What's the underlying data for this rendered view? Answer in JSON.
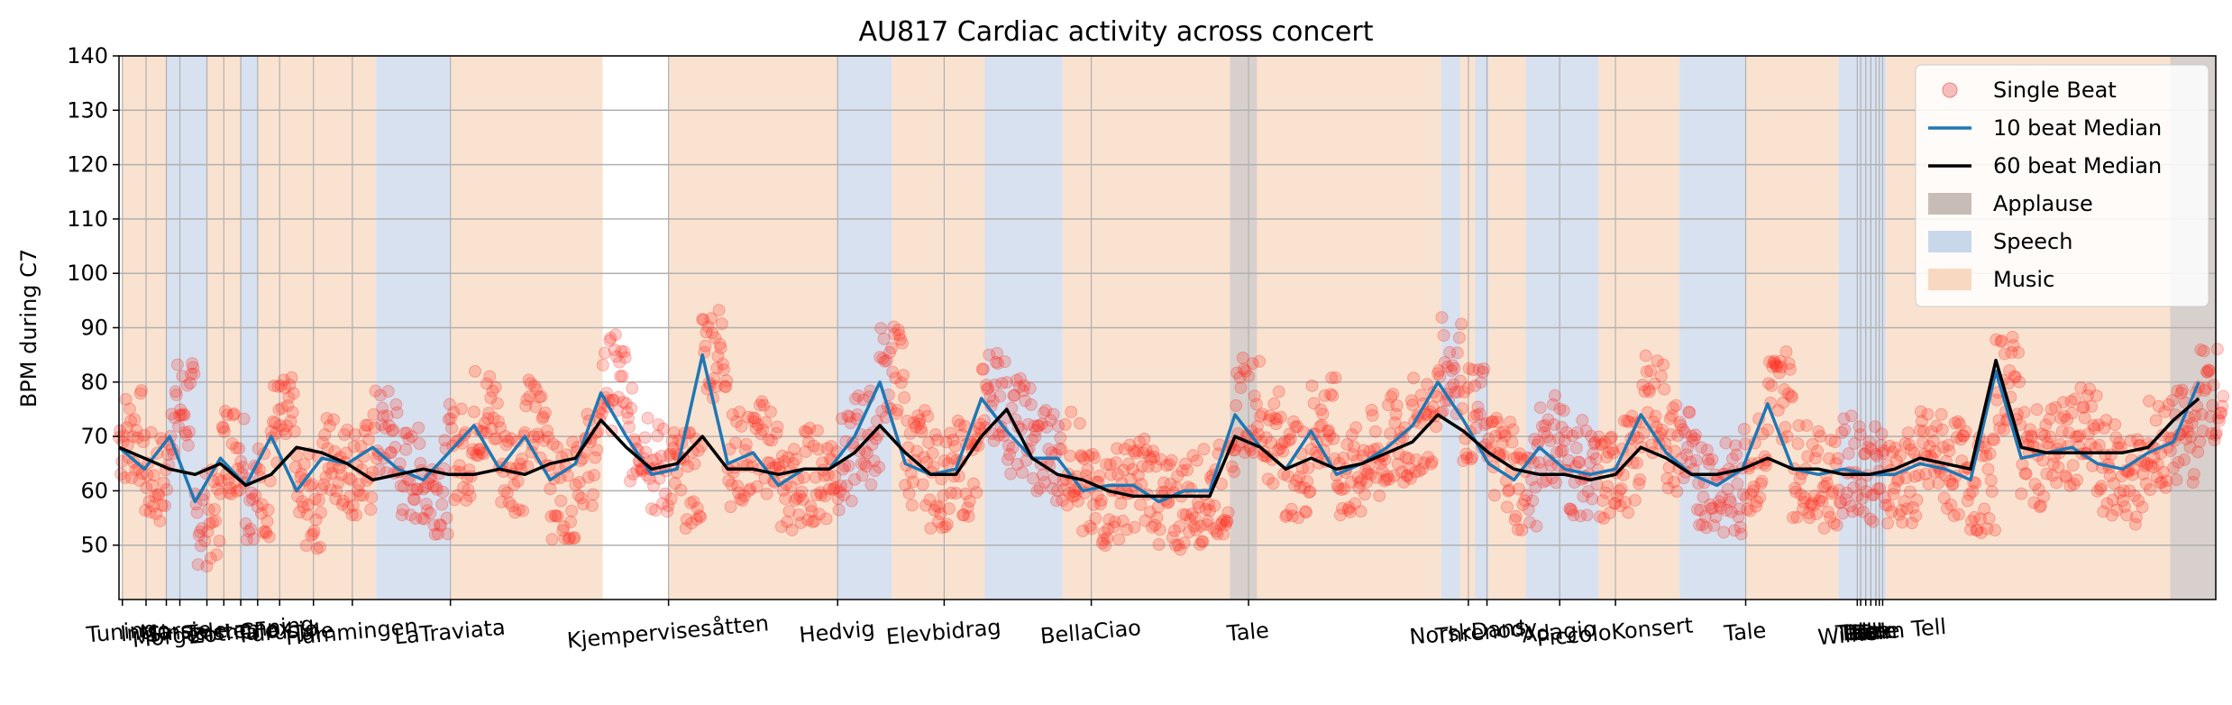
{
  "chart_data": {
    "type": "line",
    "title": "AU817 Cardiac activity across concert",
    "ylabel": "BPM during C7",
    "xlabel": "",
    "ylim": [
      40,
      140
    ],
    "yticks": [
      50,
      60,
      70,
      80,
      90,
      100,
      110,
      120,
      130,
      140
    ],
    "grid": true,
    "legend_position": "upper right",
    "x_tick_labels": [
      "Tuning",
      "Intro",
      "Mars",
      "Sinsie",
      "Tale",
      "Morgenstemning",
      "ZothCFox",
      "Tale",
      "Furusjø",
      "Tale",
      "Hummingen",
      "LaTraviata",
      "Kjempervisesåtten",
      "Hedvig",
      "Elevbidrag",
      "BellaCiao",
      "Tale",
      "NorskDans",
      "Threnody",
      "Adagio",
      "PiccoloKonsert",
      "Tale",
      "Tale",
      "Tale",
      "Tale",
      "Tale",
      "Tale",
      "Tale",
      "Wilhelm Tell"
    ],
    "sections": [
      {
        "label": "Music",
        "start": 0.2,
        "end": 2.8
      },
      {
        "label": "Speech",
        "start": 2.8,
        "end": 5.2
      },
      {
        "label": "Music",
        "start": 5.2,
        "end": 7.2
      },
      {
        "label": "Speech",
        "start": 7.2,
        "end": 8.2
      },
      {
        "label": "Music",
        "start": 8.2,
        "end": 15.2
      },
      {
        "label": "Speech",
        "start": 15.2,
        "end": 19.6
      },
      {
        "label": "Music",
        "start": 19.6,
        "end": 28.6
      },
      {
        "label": "Music",
        "start": 32.5,
        "end": 42.5
      },
      {
        "label": "Speech",
        "start": 42.5,
        "end": 45.7
      },
      {
        "label": "Music",
        "start": 45.7,
        "end": 51.2
      },
      {
        "label": "Speech",
        "start": 51.2,
        "end": 55.8
      },
      {
        "label": "Music",
        "start": 55.8,
        "end": 65.7
      },
      {
        "label": "Applause",
        "start": 65.7,
        "end": 67.3
      },
      {
        "label": "Music",
        "start": 67.3,
        "end": 78.2
      },
      {
        "label": "Speech",
        "start": 78.2,
        "end": 79.3
      },
      {
        "label": "Music",
        "start": 79.3,
        "end": 80.2
      },
      {
        "label": "Speech",
        "start": 80.2,
        "end": 81
      },
      {
        "label": "Music",
        "start": 81,
        "end": 83.2
      },
      {
        "label": "Speech",
        "start": 83.2,
        "end": 87.5
      },
      {
        "label": "Music",
        "start": 87.5,
        "end": 92.3
      },
      {
        "label": "Speech",
        "start": 92.3,
        "end": 96.2
      },
      {
        "label": "Music",
        "start": 96.2,
        "end": 101.7
      },
      {
        "label": "Speech",
        "start": 101.7,
        "end": 104.5
      },
      {
        "label": "Music",
        "start": 104.5,
        "end": 121.3
      },
      {
        "label": "Applause",
        "start": 121.3,
        "end": 124
      }
    ],
    "series": [
      {
        "name": "Single Beat",
        "type": "scatter",
        "x": [
          0,
          1.5,
          3,
          4.5,
          6,
          7.5,
          9,
          10.5,
          12,
          13.5,
          15,
          16.5,
          18,
          19.5,
          21,
          22.5,
          24,
          25.5,
          27,
          28.5,
          30,
          31.5,
          33,
          34.5,
          36,
          37.5,
          39,
          40.5,
          42,
          43.5,
          45,
          46.5,
          48,
          49.5,
          51,
          52.5,
          54,
          55.5,
          57,
          58.5,
          60,
          61.5,
          63,
          64.5,
          66,
          67.5,
          69,
          70.5,
          72,
          73.5,
          75,
          76.5,
          78,
          79.5,
          81,
          82.5,
          84,
          85.5,
          87,
          88.5,
          90,
          91.5,
          93,
          94.5,
          96,
          97.5,
          99,
          100.5,
          102,
          103.5,
          105,
          106.5,
          108,
          109.5,
          111,
          112.5,
          114,
          115.5,
          117,
          118.5,
          120,
          121.5,
          123
        ],
        "y": [
          70,
          62,
          75,
          55,
          68,
          60,
          72,
          58,
          66,
          64,
          70,
          63,
          61,
          67,
          74,
          65,
          72,
          60,
          66,
          80,
          70,
          64,
          62,
          86,
          66,
          68,
          60,
          63,
          65,
          70,
          82,
          66,
          62,
          64,
          78,
          72,
          67,
          66,
          58,
          60,
          62,
          57,
          59,
          60,
          76,
          70,
          64,
          72,
          63,
          66,
          69,
          72,
          83,
          74,
          66,
          61,
          70,
          64,
          62,
          65,
          76,
          68,
          62,
          60,
          65,
          78,
          64,
          62,
          65,
          63,
          62,
          66,
          64,
          61,
          80,
          66,
          68,
          70,
          64,
          62,
          68,
          70,
          78
        ]
      },
      {
        "name": "10 beat Median",
        "type": "line",
        "x": [
          0,
          1.5,
          3,
          4.5,
          6,
          7.5,
          9,
          10.5,
          12,
          13.5,
          15,
          16.5,
          18,
          19.5,
          21,
          22.5,
          24,
          25.5,
          27,
          28.5,
          30,
          31.5,
          33,
          34.5,
          36,
          37.5,
          39,
          40.5,
          42,
          43.5,
          45,
          46.5,
          48,
          49.5,
          51,
          52.5,
          54,
          55.5,
          57,
          58.5,
          60,
          61.5,
          63,
          64.5,
          66,
          67.5,
          69,
          70.5,
          72,
          73.5,
          75,
          76.5,
          78,
          79.5,
          81,
          82.5,
          84,
          85.5,
          87,
          88.5,
          90,
          91.5,
          93,
          94.5,
          96,
          97.5,
          99,
          100.5,
          102,
          103.5,
          105,
          106.5,
          108,
          109.5,
          111,
          112.5,
          114,
          115.5,
          117,
          118.5,
          120,
          121.5,
          123
        ],
        "y": [
          68,
          64,
          70,
          58,
          66,
          61,
          70,
          60,
          66,
          65,
          68,
          64,
          62,
          67,
          72,
          64,
          70,
          62,
          65,
          78,
          70,
          63,
          64,
          85,
          65,
          67,
          61,
          64,
          64,
          70,
          80,
          65,
          63,
          64,
          77,
          71,
          66,
          66,
          60,
          61,
          61,
          58,
          60,
          60,
          74,
          68,
          64,
          71,
          63,
          65,
          68,
          72,
          80,
          73,
          65,
          62,
          68,
          64,
          63,
          64,
          74,
          67,
          63,
          61,
          64,
          76,
          64,
          63,
          64,
          63,
          63,
          65,
          64,
          62,
          82,
          66,
          67,
          68,
          65,
          64,
          67,
          69,
          80
        ]
      },
      {
        "name": "60 beat Median",
        "type": "line",
        "x": [
          0,
          1.5,
          3,
          4.5,
          6,
          7.5,
          9,
          10.5,
          12,
          13.5,
          15,
          16.5,
          18,
          19.5,
          21,
          22.5,
          24,
          25.5,
          27,
          28.5,
          30,
          31.5,
          33,
          34.5,
          36,
          37.5,
          39,
          40.5,
          42,
          43.5,
          45,
          46.5,
          48,
          49.5,
          51,
          52.5,
          54,
          55.5,
          57,
          58.5,
          60,
          61.5,
          63,
          64.5,
          66,
          67.5,
          69,
          70.5,
          72,
          73.5,
          75,
          76.5,
          78,
          79.5,
          81,
          82.5,
          84,
          85.5,
          87,
          88.5,
          90,
          91.5,
          93,
          94.5,
          96,
          97.5,
          99,
          100.5,
          102,
          103.5,
          105,
          106.5,
          108,
          109.5,
          111,
          112.5,
          114,
          115.5,
          117,
          118.5,
          120,
          121.5,
          123
        ],
        "y": [
          68,
          66,
          64,
          63,
          65,
          61,
          63,
          68,
          67,
          65,
          62,
          63,
          64,
          63,
          63,
          64,
          63,
          65,
          66,
          73,
          68,
          64,
          65,
          70,
          64,
          64,
          63,
          64,
          64,
          67,
          72,
          67,
          63,
          63,
          70,
          75,
          66,
          63,
          62,
          60,
          59,
          59,
          59,
          59,
          70,
          68,
          64,
          66,
          64,
          65,
          67,
          69,
          74,
          71,
          67,
          64,
          63,
          63,
          62,
          63,
          68,
          66,
          63,
          63,
          64,
          66,
          64,
          64,
          63,
          63,
          64,
          66,
          65,
          64,
          84,
          68,
          67,
          67,
          67,
          67,
          68,
          73,
          77
        ]
      }
    ]
  },
  "legend": [
    {
      "label": "Single Beat",
      "kind": "marker",
      "color": "#f08080"
    },
    {
      "label": "10 beat Median",
      "kind": "line",
      "color": "#1f77b4"
    },
    {
      "label": "60 beat Median",
      "kind": "line",
      "color": "#000000"
    },
    {
      "label": "Applause",
      "kind": "patch",
      "color": "#c8bcb6"
    },
    {
      "label": "Speech",
      "kind": "patch",
      "color": "#c9d7ea"
    },
    {
      "label": "Music",
      "kind": "patch",
      "color": "#f8d8c0"
    }
  ],
  "colors": {
    "single_beat": "#ff2a1a",
    "median10": "#1f77b4",
    "median60": "#000000",
    "applause": "#c8bcb6",
    "speech": "#c9d7ea",
    "music": "#f8d8c0"
  }
}
